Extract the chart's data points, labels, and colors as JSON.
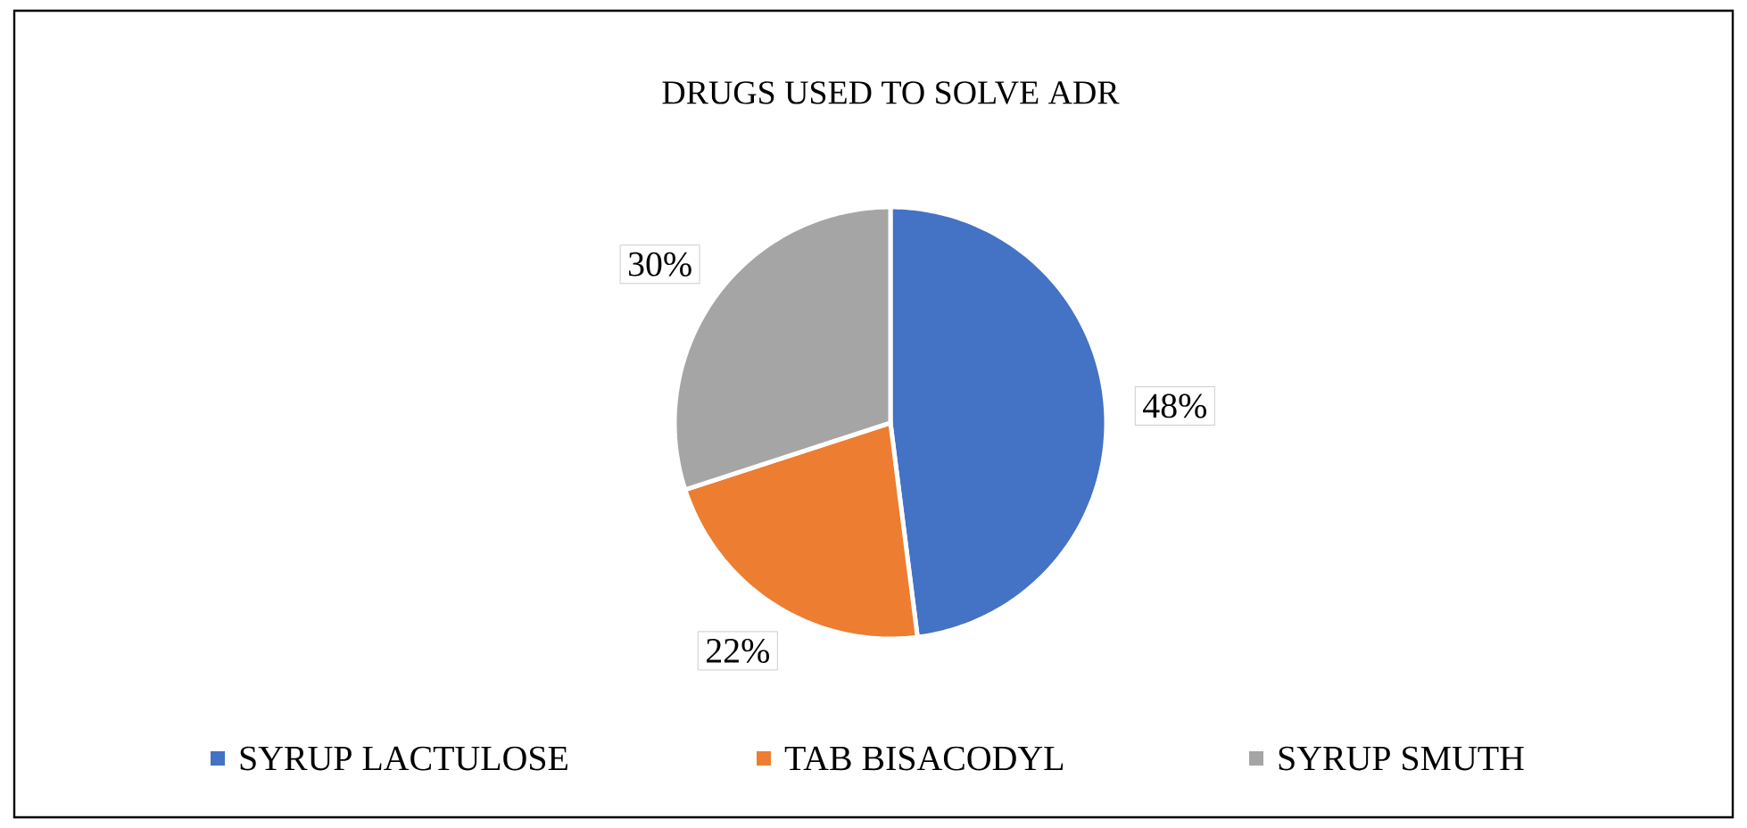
{
  "chart_data": {
    "type": "pie",
    "title": "DRUGS USED TO SOLVE ADR",
    "categories": [
      "SYRUP LACTULOSE",
      "TAB BISACODYL",
      "SYRUP SMUTH"
    ],
    "values": [
      48,
      22,
      30
    ],
    "colors": [
      "#4472c4",
      "#ed7d31",
      "#a5a5a5"
    ],
    "value_labels": [
      "48%",
      "22%",
      "30%"
    ],
    "legend": "bottom"
  }
}
